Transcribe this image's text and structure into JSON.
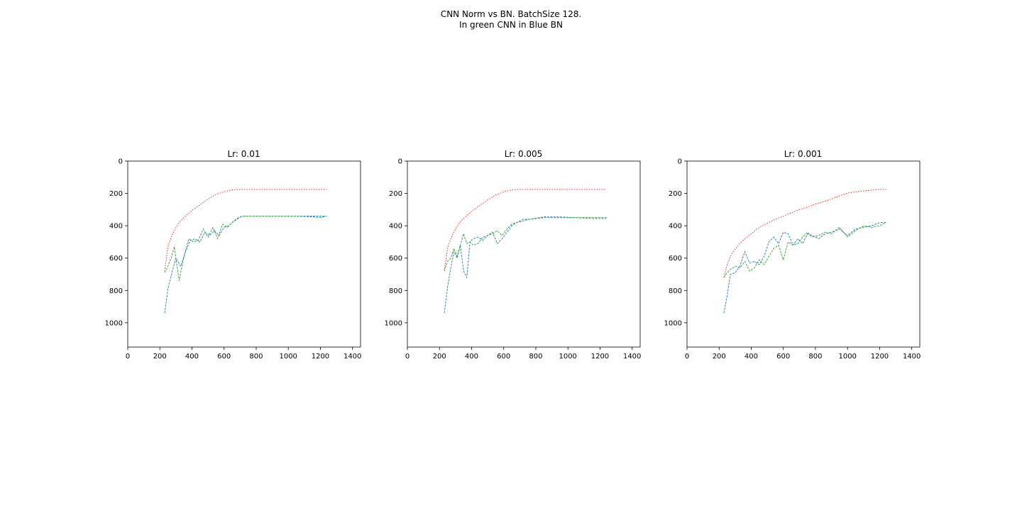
{
  "figure": {
    "title_line1": "CNN Norm vs BN. BatchSize 128.",
    "title_line2": "In green CNN in Blue BN"
  },
  "chart_data": [
    {
      "type": "line",
      "title": "Lr: 0.01",
      "xlim": [
        0,
        1450
      ],
      "ylim": [
        1150,
        0
      ],
      "y_inverted": true,
      "xticks": [
        0,
        200,
        400,
        600,
        800,
        1000,
        1200,
        1400
      ],
      "yticks": [
        0,
        200,
        400,
        600,
        800,
        1000
      ],
      "grid": false,
      "series": [
        {
          "color": "#ff0000",
          "x": [
            230,
            250,
            270,
            300,
            330,
            360,
            400,
            450,
            500,
            550,
            600,
            650,
            680,
            750,
            850,
            950,
            1050,
            1150,
            1240
          ],
          "y": [
            680,
            530,
            470,
            410,
            370,
            340,
            305,
            270,
            235,
            205,
            190,
            178,
            175,
            175,
            175,
            175,
            175,
            175,
            175
          ]
        },
        {
          "color": "#1f77b4",
          "x": [
            230,
            250,
            275,
            300,
            330,
            360,
            390,
            420,
            450,
            480,
            510,
            540,
            570,
            600,
            630,
            660,
            690,
            720,
            760,
            850,
            950,
            1050,
            1150,
            1240
          ],
          "y": [
            940,
            790,
            690,
            600,
            650,
            560,
            490,
            480,
            500,
            440,
            460,
            430,
            460,
            410,
            400,
            370,
            350,
            340,
            340,
            340,
            340,
            340,
            340,
            340
          ]
        },
        {
          "color": "#2ca02c",
          "x": [
            230,
            250,
            270,
            290,
            320,
            350,
            380,
            410,
            440,
            470,
            500,
            530,
            560,
            590,
            620,
            650,
            680,
            710,
            750,
            850,
            950,
            1050,
            1150,
            1200,
            1240
          ],
          "y": [
            690,
            650,
            600,
            530,
            740,
            590,
            480,
            500,
            490,
            420,
            470,
            410,
            480,
            390,
            410,
            380,
            360,
            340,
            340,
            340,
            340,
            340,
            345,
            350,
            340
          ]
        }
      ]
    },
    {
      "type": "line",
      "title": "Lr: 0.005",
      "xlim": [
        0,
        1450
      ],
      "ylim": [
        1150,
        0
      ],
      "y_inverted": true,
      "xticks": [
        0,
        200,
        400,
        600,
        800,
        1000,
        1200,
        1400
      ],
      "yticks": [
        0,
        200,
        400,
        600,
        800,
        1000
      ],
      "grid": false,
      "series": [
        {
          "color": "#ff0000",
          "x": [
            230,
            250,
            270,
            300,
            330,
            360,
            400,
            450,
            500,
            550,
            600,
            650,
            680,
            750,
            850,
            950,
            1050,
            1150,
            1240
          ],
          "y": [
            680,
            540,
            480,
            420,
            375,
            345,
            310,
            275,
            240,
            210,
            190,
            178,
            175,
            175,
            175,
            175,
            175,
            175,
            175
          ]
        },
        {
          "color": "#1f77b4",
          "x": [
            230,
            250,
            270,
            290,
            310,
            330,
            350,
            370,
            390,
            410,
            440,
            470,
            500,
            530,
            560,
            590,
            620,
            650,
            680,
            720,
            760,
            850,
            950,
            1050,
            1150,
            1240
          ],
          "y": [
            940,
            780,
            660,
            560,
            600,
            520,
            680,
            720,
            500,
            480,
            470,
            490,
            460,
            440,
            510,
            480,
            440,
            400,
            380,
            370,
            360,
            350,
            350,
            350,
            355,
            355
          ]
        },
        {
          "color": "#2ca02c",
          "x": [
            230,
            250,
            270,
            290,
            310,
            330,
            350,
            370,
            390,
            410,
            440,
            470,
            500,
            530,
            560,
            590,
            620,
            650,
            680,
            720,
            760,
            850,
            950,
            1050,
            1150,
            1240
          ],
          "y": [
            680,
            620,
            600,
            540,
            590,
            520,
            450,
            510,
            500,
            520,
            510,
            470,
            460,
            450,
            430,
            460,
            420,
            390,
            380,
            360,
            360,
            345,
            345,
            350,
            350,
            350
          ]
        }
      ]
    },
    {
      "type": "line",
      "title": "Lr: 0.001",
      "xlim": [
        0,
        1450
      ],
      "ylim": [
        1150,
        0
      ],
      "y_inverted": true,
      "xticks": [
        0,
        200,
        400,
        600,
        800,
        1000,
        1200,
        1400
      ],
      "yticks": [
        0,
        200,
        400,
        600,
        800,
        1000
      ],
      "grid": false,
      "series": [
        {
          "color": "#ff0000",
          "x": [
            230,
            250,
            280,
            320,
            360,
            400,
            450,
            500,
            550,
            600,
            650,
            700,
            750,
            800,
            850,
            900,
            950,
            1000,
            1050,
            1100,
            1150,
            1200,
            1240
          ],
          "y": [
            720,
            640,
            570,
            520,
            480,
            450,
            410,
            385,
            360,
            340,
            320,
            300,
            285,
            265,
            250,
            235,
            215,
            198,
            190,
            185,
            180,
            175,
            175
          ]
        },
        {
          "color": "#1f77b4",
          "x": [
            230,
            250,
            270,
            300,
            330,
            360,
            390,
            420,
            450,
            480,
            510,
            540,
            570,
            600,
            630,
            660,
            690,
            720,
            750,
            780,
            820,
            860,
            900,
            950,
            1000,
            1050,
            1100,
            1150,
            1200,
            1240
          ],
          "y": [
            940,
            830,
            700,
            690,
            650,
            560,
            630,
            620,
            640,
            590,
            500,
            470,
            510,
            440,
            450,
            520,
            480,
            510,
            450,
            460,
            480,
            450,
            440,
            420,
            460,
            420,
            410,
            400,
            380,
            380
          ]
        },
        {
          "color": "#2ca02c",
          "x": [
            230,
            250,
            270,
            300,
            330,
            360,
            390,
            420,
            450,
            480,
            510,
            540,
            570,
            600,
            630,
            660,
            690,
            720,
            750,
            780,
            820,
            860,
            900,
            950,
            1000,
            1050,
            1100,
            1150,
            1200,
            1240
          ],
          "y": [
            720,
            690,
            670,
            650,
            660,
            620,
            680,
            660,
            610,
            640,
            590,
            540,
            520,
            610,
            500,
            520,
            510,
            470,
            440,
            470,
            460,
            440,
            450,
            410,
            470,
            430,
            400,
            410,
            400,
            380
          ]
        }
      ]
    }
  ]
}
